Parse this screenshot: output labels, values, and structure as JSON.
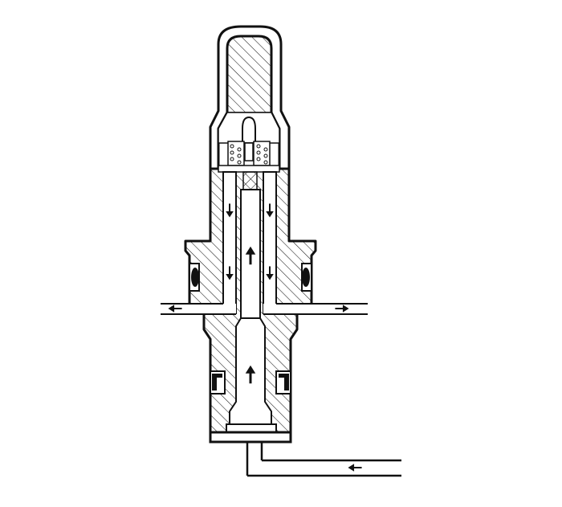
{
  "diagram": {
    "kind": "valve-cross-section",
    "colors": {
      "line": "#111111",
      "background": "#ffffff",
      "hatch": "#1a1a1a"
    },
    "flow_arrows": [
      {
        "id": "left-bore-upper",
        "direction": "down"
      },
      {
        "id": "right-bore-upper",
        "direction": "down"
      },
      {
        "id": "center-bore",
        "direction": "up"
      },
      {
        "id": "left-bore-lower",
        "direction": "down"
      },
      {
        "id": "right-bore-lower",
        "direction": "down"
      },
      {
        "id": "left-outlet",
        "direction": "left"
      },
      {
        "id": "right-outlet",
        "direction": "right"
      },
      {
        "id": "piston-bore",
        "direction": "up"
      },
      {
        "id": "inlet-pipe",
        "direction": "left"
      }
    ],
    "parts": [
      "cap",
      "inner-poppet",
      "spring",
      "valve-body",
      "center-passage",
      "side-passages",
      "outlet-ports",
      "o-ring-upper-left",
      "o-ring-upper-right",
      "seal-lower-left",
      "seal-lower-right",
      "piston",
      "base-plate",
      "inlet-pipe"
    ]
  }
}
